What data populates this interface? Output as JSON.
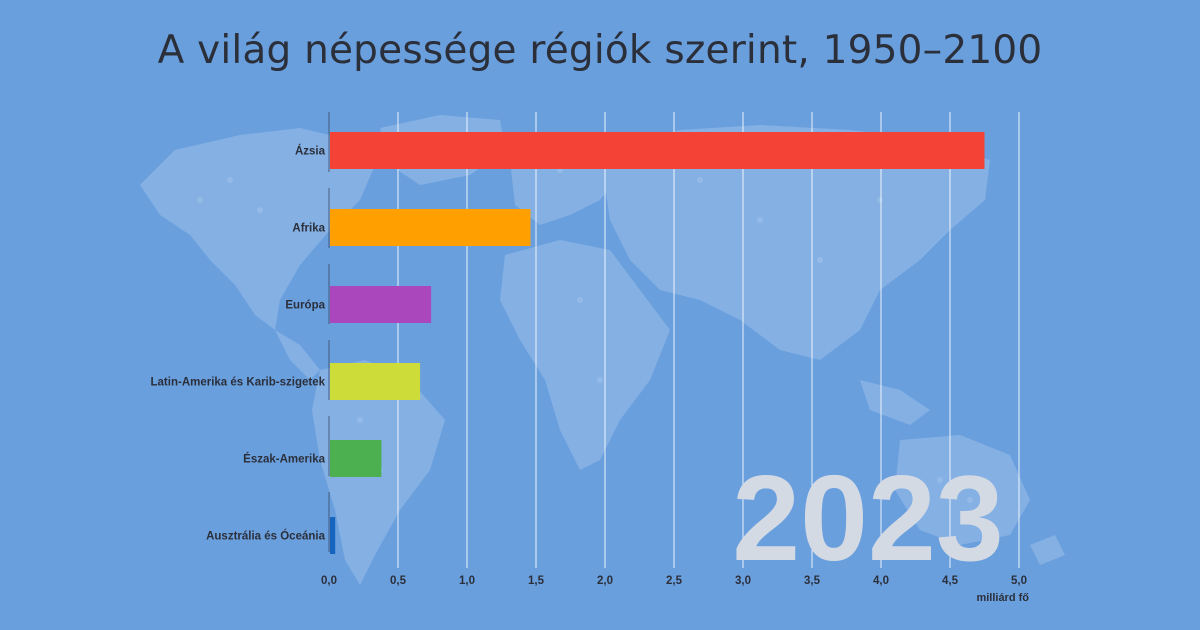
{
  "title": "A világ népessége régiók szerint, 1950–2100",
  "year": "2023",
  "colors": {
    "background": "#6a9fde",
    "map_tint": "#8fb8e6"
  },
  "chart_data": {
    "type": "bar",
    "orientation": "horizontal",
    "categories": [
      "Ázsia",
      "Afrika",
      "Európa",
      "Latin-Amerika és Karib-szigetek",
      "Észak-Amerika",
      "Ausztrália és Óceánia"
    ],
    "values": [
      4.75,
      1.46,
      0.74,
      0.66,
      0.38,
      0.045
    ],
    "colors": [
      "#f44336",
      "#ffa000",
      "#ab47bc",
      "#cddc39",
      "#4caf50",
      "#1565c0"
    ],
    "xlim": [
      0,
      5
    ],
    "ticks": [
      "0,0",
      "0,5",
      "1,0",
      "1,5",
      "2,0",
      "2,5",
      "3,0",
      "3,5",
      "4,0",
      "4,5",
      "5,0"
    ],
    "xlabel": "milliárd fő",
    "grid": true
  }
}
